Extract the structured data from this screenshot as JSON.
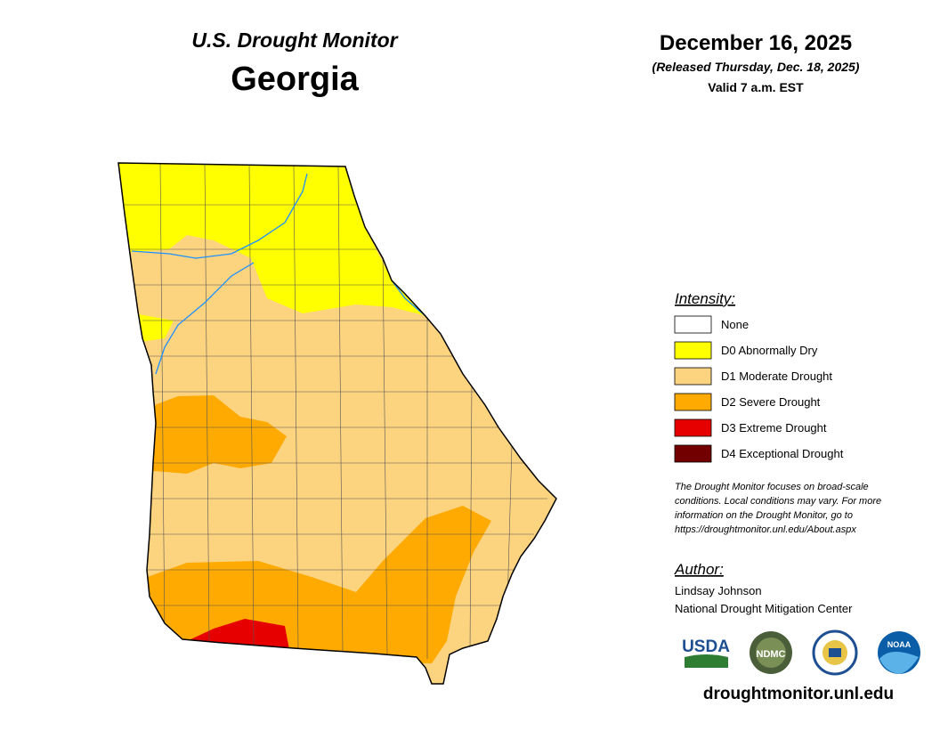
{
  "header": {
    "subtitle": "U.S. Drought Monitor",
    "title": "Georgia"
  },
  "date": {
    "date": "December 16, 2025",
    "released": "(Released Thursday, Dec. 18, 2025)",
    "valid": "Valid 7 a.m. EST"
  },
  "legend": {
    "title": "Intensity:",
    "items": [
      {
        "label": "None",
        "color": "#ffffff"
      },
      {
        "label": "D0 Abnormally Dry",
        "color": "#ffff00"
      },
      {
        "label": "D1 Moderate Drought",
        "color": "#fcd37f"
      },
      {
        "label": "D2 Severe Drought",
        "color": "#ffaa00"
      },
      {
        "label": "D3 Extreme Drought",
        "color": "#e60000"
      },
      {
        "label": "D4 Exceptional Drought",
        "color": "#730000"
      }
    ]
  },
  "note": {
    "lines": [
      "The Drought Monitor focuses on broad-scale",
      "conditions. Local conditions may vary. For more",
      "information on the Drought Monitor, go to",
      "https://droughtmonitor.unl.edu/About.aspx"
    ]
  },
  "author": {
    "title": "Author:",
    "name": "Lindsay Johnson",
    "org": "National Drought Mitigation Center"
  },
  "logos": {
    "usda": "USDA",
    "ndmc": "NDMC",
    "noaa": "NOAA"
  },
  "url": "droughtmonitor.unl.edu"
}
